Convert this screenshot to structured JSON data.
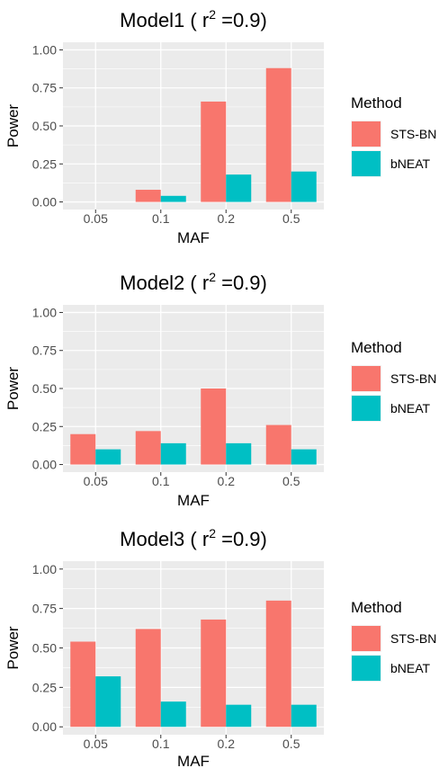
{
  "legend": {
    "title": "Method",
    "entries": [
      {
        "name": "STS-BN",
        "color": "#F8766D"
      },
      {
        "name": "bNEAT",
        "color": "#00BFC4"
      }
    ]
  },
  "panel_background": "#EBEBEB",
  "grid_color": "#FFFFFF",
  "chart_data": [
    {
      "type": "bar",
      "title_main": "Model1 ( r",
      "title_sup": "2",
      "title_tail": " =0.9)",
      "xlabel": "MAF",
      "ylabel": "Power",
      "categories": [
        "0.05",
        "0.1",
        "0.2",
        "0.5"
      ],
      "ylim": [
        0,
        1.0
      ],
      "yticks": [
        "0.00",
        "0.25",
        "0.50",
        "0.75",
        "1.00"
      ],
      "grid": true,
      "legend_position": "right",
      "series": [
        {
          "name": "STS-BN",
          "values": [
            0.0,
            0.08,
            0.66,
            0.88
          ]
        },
        {
          "name": "bNEAT",
          "values": [
            0.0,
            0.04,
            0.18,
            0.2
          ]
        }
      ]
    },
    {
      "type": "bar",
      "title_main": "Model2 ( r",
      "title_sup": "2",
      "title_tail": " =0.9)",
      "xlabel": "MAF",
      "ylabel": "Power",
      "categories": [
        "0.05",
        "0.1",
        "0.2",
        "0.5"
      ],
      "ylim": [
        0,
        1.0
      ],
      "yticks": [
        "0.00",
        "0.25",
        "0.50",
        "0.75",
        "1.00"
      ],
      "grid": true,
      "legend_position": "right",
      "series": [
        {
          "name": "STS-BN",
          "values": [
            0.2,
            0.22,
            0.5,
            0.26
          ]
        },
        {
          "name": "bNEAT",
          "values": [
            0.1,
            0.14,
            0.14,
            0.1
          ]
        }
      ]
    },
    {
      "type": "bar",
      "title_main": "Model3 ( r",
      "title_sup": "2",
      "title_tail": " =0.9)",
      "xlabel": "MAF",
      "ylabel": "Power",
      "categories": [
        "0.05",
        "0.1",
        "0.2",
        "0.5"
      ],
      "ylim": [
        0,
        1.0
      ],
      "yticks": [
        "0.00",
        "0.25",
        "0.50",
        "0.75",
        "1.00"
      ],
      "grid": true,
      "legend_position": "right",
      "series": [
        {
          "name": "STS-BN",
          "values": [
            0.54,
            0.62,
            0.68,
            0.8
          ]
        },
        {
          "name": "bNEAT",
          "values": [
            0.32,
            0.16,
            0.14,
            0.14
          ]
        }
      ]
    }
  ]
}
